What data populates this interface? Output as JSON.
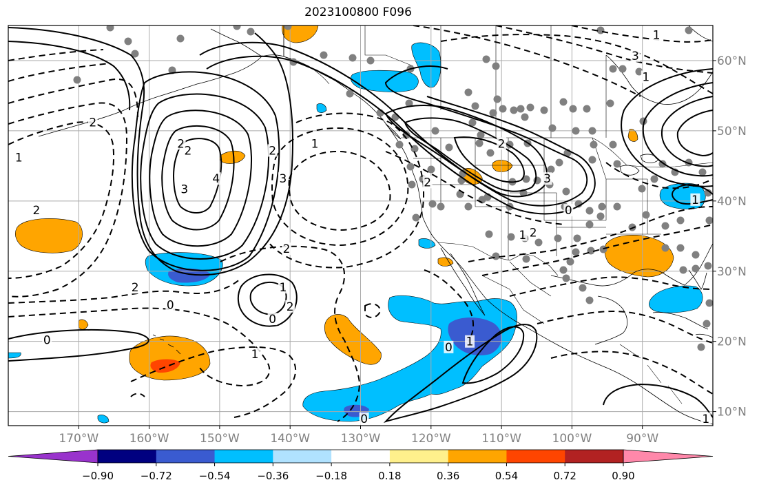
{
  "title": "2023100800 F096",
  "map": {
    "lon_range": [
      -180,
      -80
    ],
    "lat_range": [
      8,
      65
    ],
    "lon_ticks": [
      {
        "value": -170,
        "label": "170°W"
      },
      {
        "value": -160,
        "label": "160°W"
      },
      {
        "value": -150,
        "label": "150°W"
      },
      {
        "value": -140,
        "label": "140°W"
      },
      {
        "value": -130,
        "label": "130°W"
      },
      {
        "value": -120,
        "label": "120°W"
      },
      {
        "value": -110,
        "label": "110°W"
      },
      {
        "value": -100,
        "label": "100°W"
      },
      {
        "value": -90,
        "label": "90°W"
      }
    ],
    "lat_ticks": [
      {
        "value": 60,
        "label": "60°N"
      },
      {
        "value": 50,
        "label": "50°N"
      },
      {
        "value": 40,
        "label": "40°N"
      },
      {
        "value": 30,
        "label": "30°N"
      },
      {
        "value": 20,
        "label": "20°N"
      },
      {
        "value": 10,
        "label": "10°N"
      }
    ],
    "grid": true,
    "contour_labels": [
      {
        "text": "3",
        "lon": -155,
        "lat": 41.5
      },
      {
        "text": "4",
        "lon": -150.5,
        "lat": 43
      },
      {
        "text": "2",
        "lon": -155.5,
        "lat": 48
      },
      {
        "text": "2",
        "lon": -154.5,
        "lat": 47
      },
      {
        "text": "3",
        "lon": -141,
        "lat": 43
      },
      {
        "text": "2",
        "lon": -142.5,
        "lat": 47
      },
      {
        "text": "1",
        "lon": -136.5,
        "lat": 48
      },
      {
        "text": "2",
        "lon": -176,
        "lat": 38.5
      },
      {
        "text": "2",
        "lon": -168,
        "lat": 51
      },
      {
        "text": "2",
        "lon": -162,
        "lat": 27.5
      },
      {
        "text": "0",
        "lon": -157,
        "lat": 25
      },
      {
        "text": "0",
        "lon": -174.5,
        "lat": 20
      },
      {
        "text": "1",
        "lon": -145,
        "lat": 18
      },
      {
        "text": "2",
        "lon": -140.5,
        "lat": 33
      },
      {
        "text": "1",
        "lon": -141,
        "lat": 27.5
      },
      {
        "text": "2",
        "lon": -140,
        "lat": 24.8
      },
      {
        "text": "0",
        "lon": -142.5,
        "lat": 23
      },
      {
        "text": "0",
        "lon": -129.5,
        "lat": 8.8
      },
      {
        "text": "0",
        "lon": -117.5,
        "lat": 19
      },
      {
        "text": "1",
        "lon": -114.5,
        "lat": 19.8
      },
      {
        "text": "2",
        "lon": -110,
        "lat": 48
      },
      {
        "text": "3",
        "lon": -103.5,
        "lat": 43
      },
      {
        "text": "2",
        "lon": -120.5,
        "lat": 42.5
      },
      {
        "text": "1",
        "lon": -107,
        "lat": 35
      },
      {
        "text": "2",
        "lon": -105.5,
        "lat": 35.3
      },
      {
        "text": "0",
        "lon": -100.5,
        "lat": 38.5
      },
      {
        "text": "3",
        "lon": -91,
        "lat": 60.5
      },
      {
        "text": "1",
        "lon": -89.5,
        "lat": 57.5
      },
      {
        "text": "1",
        "lon": -82.5,
        "lat": 40
      },
      {
        "text": "1",
        "lon": -81,
        "lat": 8.8
      },
      {
        "text": "1",
        "lon": -88,
        "lat": 63.5
      },
      {
        "text": "1",
        "lon": -178.5,
        "lat": 46
      }
    ]
  },
  "colorbar": {
    "boundaries": [
      -0.9,
      -0.72,
      -0.54,
      -0.36,
      -0.18,
      0.18,
      0.36,
      0.54,
      0.72,
      0.9
    ],
    "tick_labels": [
      "−0.90",
      "−0.72",
      "−0.54",
      "−0.36",
      "−0.18",
      "0.18",
      "0.36",
      "0.54",
      "0.72",
      "0.90"
    ],
    "colors": [
      "#9933cc",
      "#000080",
      "#3a5bd0",
      "#00bfff",
      "#b0e2ff",
      "#ffffff",
      "#fff08c",
      "#ffa500",
      "#ff4500",
      "#b22222",
      "#ff88aa"
    ],
    "extend": "both"
  },
  "colors": {
    "contour": "#000000",
    "grid": "#aaaaaa",
    "tick_text": "#808080",
    "dots": "#808080"
  }
}
